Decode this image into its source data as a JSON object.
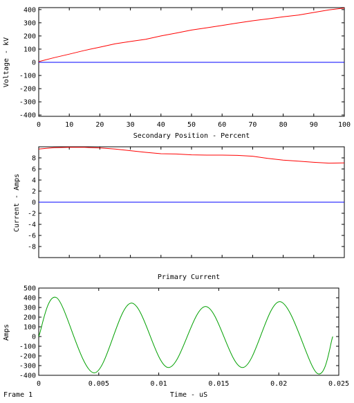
{
  "chart_data": [
    {
      "type": "line",
      "title": "",
      "xlabel": "Secondary Position - Percent",
      "ylabel": "Voltage - kV",
      "xlim": [
        0,
        100
      ],
      "ylim": [
        -410,
        415
      ],
      "x_ticks": [
        0,
        10,
        20,
        30,
        40,
        50,
        60,
        70,
        80,
        90,
        100
      ],
      "y_ticks": [
        -400,
        -300,
        -200,
        -100,
        0,
        100,
        200,
        300,
        400
      ],
      "grid": false,
      "series": [
        {
          "color": "#ff0000",
          "x": [
            0,
            5,
            10,
            15,
            20,
            25,
            30,
            35,
            40,
            45,
            50,
            55,
            60,
            65,
            70,
            75,
            80,
            85,
            90,
            95,
            100
          ],
          "y": [
            5,
            35,
            62,
            90,
            115,
            140,
            158,
            175,
            200,
            222,
            245,
            262,
            280,
            298,
            315,
            330,
            345,
            358,
            378,
            398,
            412
          ]
        },
        {
          "color": "#0000ff",
          "x": [
            0,
            10,
            20,
            30,
            40,
            50,
            60,
            70,
            80,
            90,
            100
          ],
          "y": [
            0,
            0,
            0,
            0,
            0,
            0,
            0,
            0,
            0,
            0,
            0
          ]
        }
      ]
    },
    {
      "type": "line",
      "title": "",
      "xlabel": "",
      "ylabel": "Current - Amps",
      "xlim": [
        0,
        100
      ],
      "ylim": [
        -10,
        10
      ],
      "y_ticks": [
        -8,
        -6,
        -4,
        -2,
        0,
        2,
        4,
        6,
        8
      ],
      "grid": false,
      "series": [
        {
          "color": "#ff0000",
          "x": [
            0,
            5,
            10,
            15,
            20,
            25,
            30,
            35,
            40,
            45,
            50,
            55,
            60,
            65,
            70,
            75,
            80,
            85,
            90,
            95,
            100
          ],
          "y": [
            9.6,
            9.85,
            9.9,
            9.9,
            9.8,
            9.6,
            9.3,
            9.0,
            8.75,
            8.7,
            8.55,
            8.5,
            8.5,
            8.45,
            8.3,
            7.9,
            7.6,
            7.4,
            7.2,
            7.05,
            7.1
          ]
        },
        {
          "color": "#0000ff",
          "x": [
            0,
            10,
            20,
            30,
            40,
            50,
            60,
            70,
            80,
            90,
            100
          ],
          "y": [
            0,
            0,
            0,
            0,
            0,
            0,
            0,
            0,
            0,
            0,
            0
          ]
        }
      ]
    },
    {
      "type": "line",
      "title": "Primary Current",
      "xlabel": "Time - uS",
      "ylabel": "Amps",
      "xlim": [
        0,
        0.025
      ],
      "ylim": [
        -400,
        500
      ],
      "x_ticks": [
        0,
        0.005,
        0.01,
        0.015,
        0.02,
        0.025
      ],
      "x_tick_labels": [
        "0",
        "0.005",
        "0.01",
        "0.015",
        "0.02",
        "0.025"
      ],
      "y_ticks": [
        -400,
        -300,
        -200,
        -100,
        0,
        100,
        200,
        300,
        400,
        500
      ],
      "grid": false,
      "series": [
        {
          "color": "#00a000",
          "x": [
            0,
            0.0015,
            0.0046,
            0.0077,
            0.0108,
            0.0139,
            0.017,
            0.0201,
            0.0232,
            0.0245
          ],
          "y": [
            0,
            400,
            -375,
            345,
            -320,
            310,
            -320,
            360,
            -380,
            0
          ]
        }
      ]
    }
  ],
  "footer": {
    "frame_label": "Frame 1"
  }
}
